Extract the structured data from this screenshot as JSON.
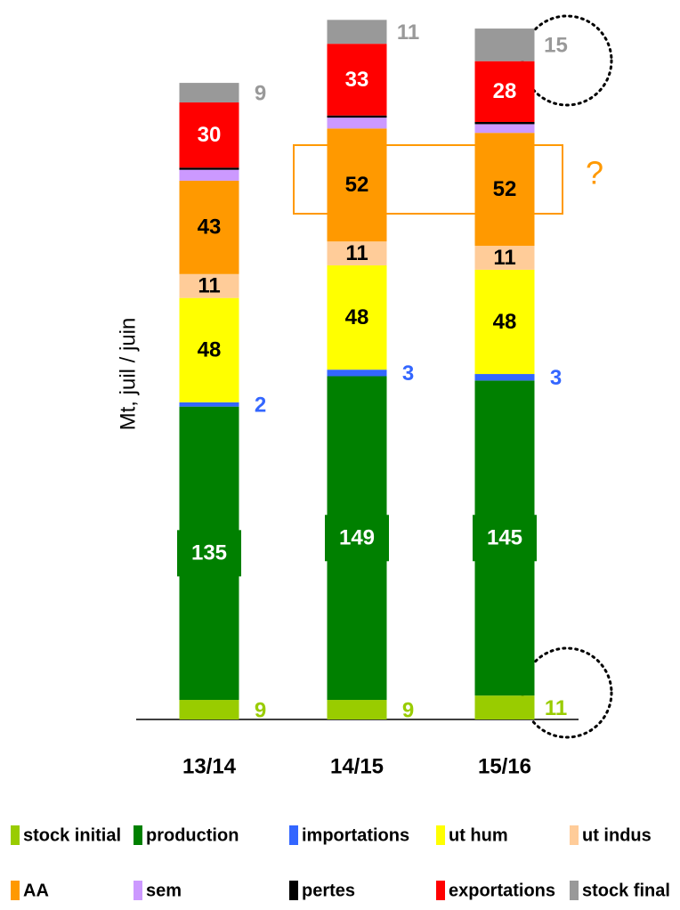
{
  "chart_data": {
    "type": "stacked_bar",
    "y_label": "Mt, juil / juin",
    "annotation": "?",
    "categories": [
      "13/14",
      "14/15",
      "15/16"
    ],
    "series": [
      {
        "name": "stock initial",
        "color": "#99cc00",
        "label_color": "#99cc00",
        "label_position": "outside",
        "values": [
          9,
          9,
          11
        ]
      },
      {
        "name": "production",
        "color": "#008000",
        "label_color": "#ffffff",
        "label_position": "inside",
        "values": [
          135,
          149,
          145
        ]
      },
      {
        "name": "importations",
        "color": "#3366ff",
        "label_color": "#3366ff",
        "label_position": "outside",
        "values": [
          2,
          3,
          3
        ]
      },
      {
        "name": "ut hum",
        "color": "#ffff00",
        "label_color": "#000000",
        "label_position": "inside",
        "values": [
          48,
          48,
          48
        ]
      },
      {
        "name": "ut indus",
        "color": "#ffcc99",
        "label_color": "#000000",
        "label_position": "inside",
        "values": [
          11,
          11,
          11
        ]
      },
      {
        "name": "AA",
        "color": "#ff9900",
        "label_color": "#000000",
        "label_position": "inside",
        "values": [
          43,
          52,
          52
        ]
      },
      {
        "name": "sem",
        "color": "#cc99ff",
        "label_position": "none",
        "values": [
          5,
          5,
          4
        ]
      },
      {
        "name": "pertes",
        "color": "#000000",
        "label_position": "none",
        "values": [
          1,
          1,
          1
        ]
      },
      {
        "name": "exportations",
        "color": "#ff0000",
        "label_color": "#ffffff",
        "label_position": "inside",
        "values": [
          30,
          33,
          28
        ]
      },
      {
        "name": "stock final",
        "color": "#999999",
        "label_color": "#999999",
        "label_position": "outside",
        "values": [
          9,
          11,
          15
        ]
      }
    ]
  }
}
